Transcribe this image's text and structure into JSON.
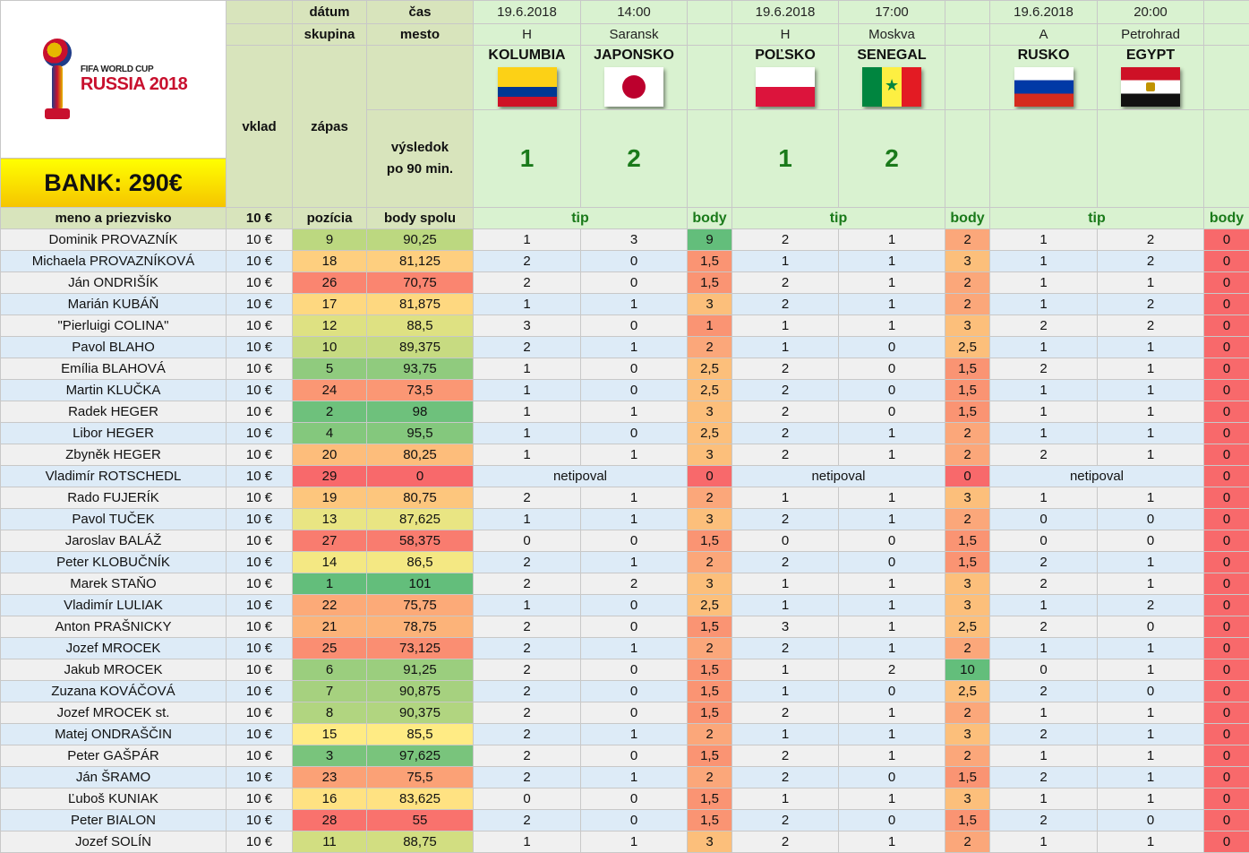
{
  "logo": {
    "line1": "FIFA WORLD CUP",
    "line2": "RUSSIA 2018"
  },
  "bank": "BANK: 290€",
  "headers": {
    "datum": "dátum",
    "cas": "čas",
    "skupina": "skupina",
    "mesto": "mesto",
    "vklad": "vklad",
    "zapas": "zápas",
    "vysledok": "výsledok",
    "po90": "po 90 min.",
    "meno": "meno a priezvisko",
    "vklad_amount": "10 €",
    "pozicia": "pozícia",
    "body_spolu": "body spolu",
    "tip": "tip",
    "body": "body"
  },
  "matches": [
    {
      "date": "19.6.2018",
      "time": "14:00",
      "group": "H",
      "city": "Saransk",
      "home": "KOLUMBIA",
      "away": "JAPONSKO",
      "home_flag": "colombia-flag",
      "away_flag": "japan-flag",
      "home_score": "1",
      "away_score": "2"
    },
    {
      "date": "19.6.2018",
      "time": "17:00",
      "group": "H",
      "city": "Moskva",
      "home": "POĽSKO",
      "away": "SENEGAL",
      "home_flag": "poland-flag",
      "away_flag": "senegal-flag",
      "home_score": "1",
      "away_score": "2"
    },
    {
      "date": "19.6.2018",
      "time": "20:00",
      "group": "A",
      "city": "Petrohrad",
      "home": "RUSKO",
      "away": "EGYPT",
      "home_flag": "russia-flag",
      "away_flag": "egypt-flag",
      "home_score": "",
      "away_score": ""
    }
  ],
  "players": [
    {
      "name": "Dominik PROVAZNÍK",
      "vklad": "10 €",
      "pos": "9",
      "total": "90,25",
      "m": [
        [
          "1",
          "3",
          "9"
        ],
        [
          "2",
          "1",
          "2"
        ],
        [
          "1",
          "2",
          "0"
        ]
      ]
    },
    {
      "name": "Michaela PROVAZNÍKOVÁ",
      "vklad": "10 €",
      "pos": "18",
      "total": "81,125",
      "m": [
        [
          "2",
          "0",
          "1,5"
        ],
        [
          "1",
          "1",
          "3"
        ],
        [
          "1",
          "2",
          "0"
        ]
      ]
    },
    {
      "name": "Ján ONDRIŠÍK",
      "vklad": "10 €",
      "pos": "26",
      "total": "70,75",
      "m": [
        [
          "2",
          "0",
          "1,5"
        ],
        [
          "2",
          "1",
          "2"
        ],
        [
          "1",
          "1",
          "0"
        ]
      ]
    },
    {
      "name": "Marián KUBÁŇ",
      "vklad": "10 €",
      "pos": "17",
      "total": "81,875",
      "m": [
        [
          "1",
          "1",
          "3"
        ],
        [
          "2",
          "1",
          "2"
        ],
        [
          "1",
          "2",
          "0"
        ]
      ]
    },
    {
      "name": "\"Pierluigi COLINA\"",
      "vklad": "10 €",
      "pos": "12",
      "total": "88,5",
      "m": [
        [
          "3",
          "0",
          "1"
        ],
        [
          "1",
          "1",
          "3"
        ],
        [
          "2",
          "2",
          "0"
        ]
      ]
    },
    {
      "name": "Pavol BLAHO",
      "vklad": "10 €",
      "pos": "10",
      "total": "89,375",
      "m": [
        [
          "2",
          "1",
          "2"
        ],
        [
          "1",
          "0",
          "2,5"
        ],
        [
          "1",
          "1",
          "0"
        ]
      ]
    },
    {
      "name": "Emília BLAHOVÁ",
      "vklad": "10 €",
      "pos": "5",
      "total": "93,75",
      "m": [
        [
          "1",
          "0",
          "2,5"
        ],
        [
          "2",
          "0",
          "1,5"
        ],
        [
          "2",
          "1",
          "0"
        ]
      ]
    },
    {
      "name": "Martin KLUČKA",
      "vklad": "10 €",
      "pos": "24",
      "total": "73,5",
      "m": [
        [
          "1",
          "0",
          "2,5"
        ],
        [
          "2",
          "0",
          "1,5"
        ],
        [
          "1",
          "1",
          "0"
        ]
      ]
    },
    {
      "name": "Radek HEGER",
      "vklad": "10 €",
      "pos": "2",
      "total": "98",
      "m": [
        [
          "1",
          "1",
          "3"
        ],
        [
          "2",
          "0",
          "1,5"
        ],
        [
          "1",
          "1",
          "0"
        ]
      ]
    },
    {
      "name": "Libor HEGER",
      "vklad": "10 €",
      "pos": "4",
      "total": "95,5",
      "m": [
        [
          "1",
          "0",
          "2,5"
        ],
        [
          "2",
          "1",
          "2"
        ],
        [
          "1",
          "1",
          "0"
        ]
      ]
    },
    {
      "name": "Zbyněk HEGER",
      "vklad": "10 €",
      "pos": "20",
      "total": "80,25",
      "m": [
        [
          "1",
          "1",
          "3"
        ],
        [
          "2",
          "1",
          "2"
        ],
        [
          "2",
          "1",
          "0"
        ]
      ]
    },
    {
      "name": "Vladimír ROTSCHEDL",
      "vklad": "10 €",
      "pos": "29",
      "total": "0",
      "nobet": "netipoval",
      "m": [
        [
          "",
          "",
          "0"
        ],
        [
          "",
          "",
          "0"
        ],
        [
          "",
          "",
          "0"
        ]
      ]
    },
    {
      "name": "Rado FUJERÍK",
      "vklad": "10 €",
      "pos": "19",
      "total": "80,75",
      "m": [
        [
          "2",
          "1",
          "2"
        ],
        [
          "1",
          "1",
          "3"
        ],
        [
          "1",
          "1",
          "0"
        ]
      ]
    },
    {
      "name": "Pavol TUČEK",
      "vklad": "10 €",
      "pos": "13",
      "total": "87,625",
      "m": [
        [
          "1",
          "1",
          "3"
        ],
        [
          "2",
          "1",
          "2"
        ],
        [
          "0",
          "0",
          "0"
        ]
      ]
    },
    {
      "name": "Jaroslav BALÁŽ",
      "vklad": "10 €",
      "pos": "27",
      "total": "58,375",
      "m": [
        [
          "0",
          "0",
          "1,5"
        ],
        [
          "0",
          "0",
          "1,5"
        ],
        [
          "0",
          "0",
          "0"
        ]
      ]
    },
    {
      "name": "Peter KLOBUČNÍK",
      "vklad": "10 €",
      "pos": "14",
      "total": "86,5",
      "m": [
        [
          "2",
          "1",
          "2"
        ],
        [
          "2",
          "0",
          "1,5"
        ],
        [
          "2",
          "1",
          "0"
        ]
      ]
    },
    {
      "name": "Marek STAŇO",
      "vklad": "10 €",
      "pos": "1",
      "total": "101",
      "m": [
        [
          "2",
          "2",
          "3"
        ],
        [
          "1",
          "1",
          "3"
        ],
        [
          "2",
          "1",
          "0"
        ]
      ]
    },
    {
      "name": "Vladimír LULIAK",
      "vklad": "10 €",
      "pos": "22",
      "total": "75,75",
      "m": [
        [
          "1",
          "0",
          "2,5"
        ],
        [
          "1",
          "1",
          "3"
        ],
        [
          "1",
          "2",
          "0"
        ]
      ]
    },
    {
      "name": "Anton PRAŠNICKY",
      "vklad": "10 €",
      "pos": "21",
      "total": "78,75",
      "m": [
        [
          "2",
          "0",
          "1,5"
        ],
        [
          "3",
          "1",
          "2,5"
        ],
        [
          "2",
          "0",
          "0"
        ]
      ]
    },
    {
      "name": "Jozef MROCEK",
      "vklad": "10 €",
      "pos": "25",
      "total": "73,125",
      "m": [
        [
          "2",
          "1",
          "2"
        ],
        [
          "2",
          "1",
          "2"
        ],
        [
          "1",
          "1",
          "0"
        ]
      ]
    },
    {
      "name": "Jakub MROCEK",
      "vklad": "10 €",
      "pos": "6",
      "total": "91,25",
      "m": [
        [
          "2",
          "0",
          "1,5"
        ],
        [
          "1",
          "2",
          "10"
        ],
        [
          "0",
          "1",
          "0"
        ]
      ]
    },
    {
      "name": "Zuzana KOVÁČOVÁ",
      "vklad": "10 €",
      "pos": "7",
      "total": "90,875",
      "m": [
        [
          "2",
          "0",
          "1,5"
        ],
        [
          "1",
          "0",
          "2,5"
        ],
        [
          "2",
          "0",
          "0"
        ]
      ]
    },
    {
      "name": "Jozef MROCEK st.",
      "vklad": "10 €",
      "pos": "8",
      "total": "90,375",
      "m": [
        [
          "2",
          "0",
          "1,5"
        ],
        [
          "2",
          "1",
          "2"
        ],
        [
          "1",
          "1",
          "0"
        ]
      ]
    },
    {
      "name": "Matej ONDRAŠČIN",
      "vklad": "10 €",
      "pos": "15",
      "total": "85,5",
      "m": [
        [
          "2",
          "1",
          "2"
        ],
        [
          "1",
          "1",
          "3"
        ],
        [
          "2",
          "1",
          "0"
        ]
      ]
    },
    {
      "name": "Peter GAŠPÁR",
      "vklad": "10 €",
      "pos": "3",
      "total": "97,625",
      "m": [
        [
          "2",
          "0",
          "1,5"
        ],
        [
          "2",
          "1",
          "2"
        ],
        [
          "1",
          "1",
          "0"
        ]
      ]
    },
    {
      "name": "Ján ŠRAMO",
      "vklad": "10 €",
      "pos": "23",
      "total": "75,5",
      "m": [
        [
          "2",
          "1",
          "2"
        ],
        [
          "2",
          "0",
          "1,5"
        ],
        [
          "2",
          "1",
          "0"
        ]
      ]
    },
    {
      "name": "Ľuboš KUNIAK",
      "vklad": "10 €",
      "pos": "16",
      "total": "83,625",
      "m": [
        [
          "0",
          "0",
          "1,5"
        ],
        [
          "1",
          "1",
          "3"
        ],
        [
          "1",
          "1",
          "0"
        ]
      ]
    },
    {
      "name": "Peter BIALON",
      "vklad": "10 €",
      "pos": "28",
      "total": "55",
      "m": [
        [
          "2",
          "0",
          "1,5"
        ],
        [
          "2",
          "0",
          "1,5"
        ],
        [
          "2",
          "0",
          "0"
        ]
      ]
    },
    {
      "name": "Jozef SOLÍN",
      "vklad": "10 €",
      "pos": "11",
      "total": "88,75",
      "m": [
        [
          "1",
          "1",
          "3"
        ],
        [
          "2",
          "1",
          "2"
        ],
        [
          "1",
          "1",
          "0"
        ]
      ]
    }
  ]
}
